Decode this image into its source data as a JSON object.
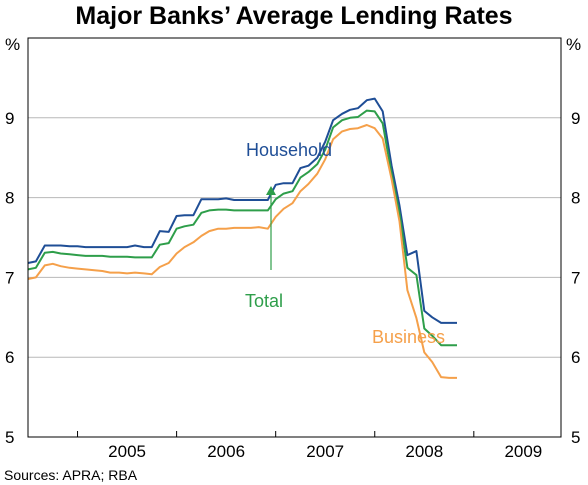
{
  "chart_data": {
    "type": "line",
    "title": "Major Banks’ Average Lending Rates",
    "unit_left": "%",
    "unit_right": "%",
    "ylim": [
      5,
      10
    ],
    "y_ticks": [
      "5",
      "6",
      "7",
      "8",
      "9"
    ],
    "xlim": [
      2004.5,
      2009.88
    ],
    "x_tick_labels": [
      "2005",
      "2006",
      "2007",
      "2008",
      "2009"
    ],
    "source": "Sources: APRA; RBA",
    "grid": "horizontal",
    "series": [
      {
        "name": "Household",
        "color": "#1f4e96",
        "x": [
          2004.5,
          2004.58,
          2004.67,
          2004.75,
          2004.83,
          2004.92,
          2005.0,
          2005.08,
          2005.17,
          2005.25,
          2005.33,
          2005.42,
          2005.5,
          2005.58,
          2005.67,
          2005.75,
          2005.83,
          2005.92,
          2006.0,
          2006.08,
          2006.17,
          2006.25,
          2006.33,
          2006.42,
          2006.5,
          2006.58,
          2006.67,
          2006.75,
          2006.83,
          2006.92,
          2007.0,
          2007.08,
          2007.17,
          2007.25,
          2007.33,
          2007.42,
          2007.5,
          2007.58,
          2007.67,
          2007.75,
          2007.83,
          2007.92,
          2008.0,
          2008.08,
          2008.17,
          2008.25,
          2008.33,
          2008.42,
          2008.5,
          2008.58,
          2008.67,
          2008.75,
          2008.83
        ],
        "values": [
          7.18,
          7.2,
          7.4,
          7.4,
          7.4,
          7.39,
          7.39,
          7.38,
          7.38,
          7.38,
          7.38,
          7.38,
          7.38,
          7.4,
          7.38,
          7.38,
          7.58,
          7.57,
          7.77,
          7.78,
          7.78,
          7.98,
          7.98,
          7.98,
          7.99,
          7.97,
          7.97,
          7.97,
          7.97,
          7.97,
          8.16,
          8.18,
          8.18,
          8.37,
          8.4,
          8.5,
          8.7,
          8.97,
          9.05,
          9.1,
          9.12,
          9.22,
          9.24,
          9.08,
          8.4,
          7.9,
          7.28,
          7.33,
          6.58,
          6.5,
          6.43,
          6.43,
          6.43
        ]
      },
      {
        "name": "Total",
        "color": "#2e9e4a",
        "x": [
          2004.5,
          2004.58,
          2004.67,
          2004.75,
          2004.83,
          2004.92,
          2005.0,
          2005.08,
          2005.17,
          2005.25,
          2005.33,
          2005.42,
          2005.5,
          2005.58,
          2005.67,
          2005.75,
          2005.83,
          2005.92,
          2006.0,
          2006.08,
          2006.17,
          2006.25,
          2006.33,
          2006.42,
          2006.5,
          2006.58,
          2006.67,
          2006.75,
          2006.83,
          2006.92,
          2007.0,
          2007.08,
          2007.17,
          2007.25,
          2007.33,
          2007.42,
          2007.5,
          2007.58,
          2007.67,
          2007.75,
          2007.83,
          2007.92,
          2008.0,
          2008.08,
          2008.17,
          2008.25,
          2008.33,
          2008.42,
          2008.5,
          2008.58,
          2008.67,
          2008.75,
          2008.83
        ],
        "values": [
          7.1,
          7.12,
          7.31,
          7.32,
          7.3,
          7.29,
          7.28,
          7.27,
          7.27,
          7.27,
          7.26,
          7.26,
          7.26,
          7.25,
          7.25,
          7.25,
          7.41,
          7.43,
          7.61,
          7.64,
          7.66,
          7.81,
          7.84,
          7.85,
          7.85,
          7.84,
          7.84,
          7.84,
          7.84,
          7.84,
          7.98,
          8.05,
          8.08,
          8.25,
          8.32,
          8.42,
          8.6,
          8.88,
          8.97,
          9.0,
          9.01,
          9.09,
          9.08,
          8.93,
          8.3,
          7.8,
          7.12,
          7.03,
          6.36,
          6.27,
          6.15,
          6.15,
          6.15
        ]
      },
      {
        "name": "Business",
        "color": "#f5a04a",
        "x": [
          2004.5,
          2004.58,
          2004.67,
          2004.75,
          2004.83,
          2004.92,
          2005.0,
          2005.08,
          2005.17,
          2005.25,
          2005.33,
          2005.42,
          2005.5,
          2005.58,
          2005.67,
          2005.75,
          2005.83,
          2005.92,
          2006.0,
          2006.08,
          2006.17,
          2006.25,
          2006.33,
          2006.42,
          2006.5,
          2006.58,
          2006.67,
          2006.75,
          2006.83,
          2006.92,
          2007.0,
          2007.08,
          2007.17,
          2007.25,
          2007.33,
          2007.42,
          2007.5,
          2007.58,
          2007.67,
          2007.75,
          2007.83,
          2007.92,
          2008.0,
          2008.08,
          2008.17,
          2008.25,
          2008.33,
          2008.42,
          2008.5,
          2008.58,
          2008.67,
          2008.75,
          2008.83
        ],
        "values": [
          6.98,
          7.0,
          7.15,
          7.17,
          7.14,
          7.12,
          7.11,
          7.1,
          7.09,
          7.08,
          7.06,
          7.06,
          7.05,
          7.06,
          7.05,
          7.04,
          7.13,
          7.18,
          7.3,
          7.38,
          7.44,
          7.52,
          7.58,
          7.61,
          7.61,
          7.62,
          7.62,
          7.62,
          7.63,
          7.61,
          7.76,
          7.86,
          7.93,
          8.08,
          8.17,
          8.3,
          8.48,
          8.73,
          8.83,
          8.86,
          8.87,
          8.91,
          8.87,
          8.74,
          8.23,
          7.7,
          6.84,
          6.49,
          6.06,
          5.94,
          5.75,
          5.74,
          5.74
        ]
      }
    ],
    "annotations": {
      "household": "Household",
      "total": "Total",
      "business": "Business"
    }
  }
}
